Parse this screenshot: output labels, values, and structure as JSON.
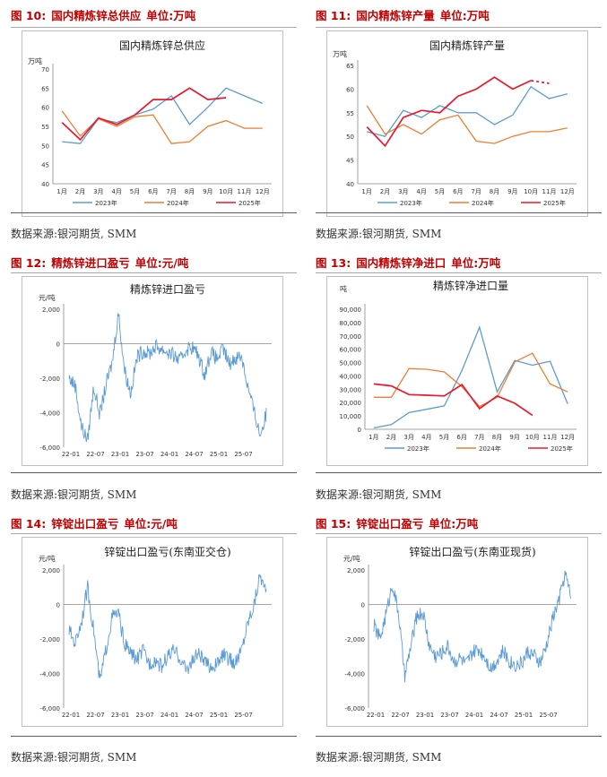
{
  "months": [
    "1月",
    "2月",
    "3月",
    "4月",
    "5月",
    "6月",
    "7月",
    "8月",
    "9月",
    "10月",
    "11月",
    "12月"
  ],
  "panels": [
    {
      "fig_label": "图 10:",
      "fig_title": "国内精炼锌总供应",
      "unit": "单位:万吨",
      "source": "数据来源:银河期货, SMM"
    },
    {
      "fig_label": "图 11:",
      "fig_title": "国内精炼锌产量",
      "unit": "单位:万吨",
      "source": "数据来源:银河期货, SMM"
    },
    {
      "fig_label": "图 12:",
      "fig_title": "精炼锌进口盈亏",
      "unit": "单位:元/吨",
      "source": "数据来源:银河期货, SMM"
    },
    {
      "fig_label": "图 13:",
      "fig_title": "国内精炼锌净进口",
      "unit": "单位:万吨",
      "source": "数据来源:银河期货, SMM"
    },
    {
      "fig_label": "图 14:",
      "fig_title": "锌锭出口盈亏",
      "unit": "单位:元/吨",
      "source": "数据来源:银河期货, SMM"
    },
    {
      "fig_label": "图 15:",
      "fig_title": "锌锭出口盈亏",
      "unit": "单位:万吨",
      "source": "数据来源:银河期货, SMM"
    }
  ],
  "chart_data": [
    {
      "type": "line",
      "title": "国内精炼锌总供应",
      "ylabel": "万吨",
      "ylim": [
        40,
        70
      ],
      "yticks": [
        "40",
        "45",
        "50",
        "55",
        "60",
        "65",
        "70"
      ],
      "categories": [
        "1月",
        "2月",
        "3月",
        "4月",
        "5月",
        "6月",
        "7月",
        "8月",
        "9月",
        "10月",
        "11月",
        "12月"
      ],
      "series": [
        {
          "name": "2023年",
          "color": "#5b9bd5",
          "values": [
            51,
            50.5,
            57,
            56,
            58,
            59.5,
            63,
            55.5,
            60,
            65,
            63,
            61
          ]
        },
        {
          "name": "2024年",
          "color": "#ed7d31",
          "values": [
            59,
            52.5,
            57,
            55,
            57.5,
            58,
            50.5,
            51,
            55,
            56.5,
            54.5,
            54.5
          ]
        },
        {
          "name": "2025年",
          "color": "#e8192c",
          "values": [
            56,
            51.5,
            57.2,
            55.5,
            58,
            62,
            62,
            65,
            62,
            62.5,
            null,
            null
          ]
        }
      ]
    },
    {
      "type": "line",
      "title": "国内精炼锌产量",
      "ylabel": "万吨",
      "ylim": [
        40,
        65
      ],
      "yticks": [
        "40",
        "45",
        "50",
        "55",
        "60",
        "65"
      ],
      "categories": [
        "1月",
        "2月",
        "3月",
        "4月",
        "5月",
        "6月",
        "7月",
        "8月",
        "9月",
        "10月",
        "11月",
        "12月"
      ],
      "series": [
        {
          "name": "2023年",
          "color": "#5b9bd5",
          "values": [
            51,
            50,
            55.5,
            54,
            56.5,
            55,
            55,
            52.5,
            54.5,
            60.5,
            58,
            59
          ]
        },
        {
          "name": "2024年",
          "color": "#ed7d31",
          "values": [
            56.5,
            50.5,
            52.5,
            50.5,
            53.5,
            54.5,
            49,
            48.5,
            50,
            51,
            51,
            51.8
          ]
        },
        {
          "name": "2025年",
          "color": "#e8192c",
          "values": [
            52,
            48,
            54,
            55.5,
            55,
            58.5,
            60,
            62.5,
            60,
            61.8,
            null,
            null
          ],
          "dashed_tail": [
            61.8,
            61.5,
            61.2
          ]
        }
      ]
    },
    {
      "type": "line",
      "title": "精炼锌进口盈亏",
      "ylabel": "元/吨",
      "ylim": [
        -6000,
        2000
      ],
      "yticks": [
        "-6,000",
        "-4,000",
        "-2,000",
        "0",
        "2,000"
      ],
      "x_ticks": [
        "22-01",
        "22-07",
        "23-01",
        "23-07",
        "24-01",
        "24-07",
        "25-01",
        "25-07"
      ],
      "series": [
        {
          "name": "进口盈亏",
          "color": "#5b9bd5",
          "values": [
            -2000,
            -2400,
            -4800,
            -5600,
            -2500,
            -4100,
            -2400,
            -1100,
            1800,
            -1500,
            -2900,
            -800,
            -400,
            -600,
            -150,
            -300,
            -500,
            -700,
            -1000,
            -300,
            -200,
            -700,
            -1800,
            -500,
            -900,
            -300,
            -1200,
            -800,
            -700,
            -2500,
            -3900,
            -5300,
            -4100
          ]
        }
      ]
    },
    {
      "type": "line",
      "title": "精炼锌净进口量",
      "ylabel": "吨",
      "ylim": [
        0,
        90000
      ],
      "yticks": [
        "0",
        "10,000",
        "20,000",
        "30,000",
        "40,000",
        "50,000",
        "60,000",
        "70,000",
        "80,000",
        "90,000"
      ],
      "categories": [
        "1月",
        "2月",
        "3月",
        "4月",
        "5月",
        "6月",
        "7月",
        "8月",
        "9月",
        "10月",
        "11月",
        "12月"
      ],
      "series": [
        {
          "name": "2023年",
          "color": "#5b9bd5",
          "values": [
            1000,
            3500,
            12500,
            15000,
            17500,
            44000,
            76500,
            28000,
            51500,
            48000,
            51000,
            19000
          ]
        },
        {
          "name": "2024年",
          "color": "#ed7d31",
          "values": [
            24000,
            24000,
            45500,
            45000,
            43000,
            32000,
            17000,
            24000,
            50500,
            57000,
            34000,
            28000
          ]
        },
        {
          "name": "2025年",
          "color": "#e8192c",
          "values": [
            34000,
            32500,
            26000,
            25500,
            25000,
            33500,
            15500,
            25000,
            19500,
            10500,
            null,
            null
          ]
        }
      ]
    },
    {
      "type": "line",
      "title": "锌锭出口盈亏(东南亚交仓)",
      "ylabel": "元/吨",
      "ylim": [
        -6000,
        2000
      ],
      "yticks": [
        "-6,000",
        "-4,000",
        "-2,000",
        "0",
        "2,000"
      ],
      "x_ticks": [
        "22-01",
        "22-07",
        "23-01",
        "23-07",
        "24-01",
        "24-07",
        "25-01",
        "25-07"
      ],
      "series": [
        {
          "name": "出口盈亏(东南亚交仓)",
          "color": "#5b9bd5",
          "values": [
            -1500,
            -2200,
            -1000,
            1000,
            -1500,
            -4500,
            -2600,
            -700,
            -500,
            -2300,
            -2800,
            -3200,
            -2700,
            -3400,
            -3200,
            -3600,
            -3000,
            -2700,
            -3100,
            -3800,
            -3300,
            -2800,
            -3400,
            -3600,
            -3500,
            -2900,
            -3200,
            -3400,
            -2600,
            -1000,
            0,
            1800,
            500
          ]
        }
      ]
    },
    {
      "type": "line",
      "title": "锌锭出口盈亏(东南亚现货)",
      "ylabel": "元/吨",
      "ylim": [
        -6000,
        2000
      ],
      "yticks": [
        "-6,000",
        "-4,000",
        "-2,000",
        "0",
        "2,000"
      ],
      "x_ticks": [
        "22-01",
        "22-07",
        "23-01",
        "23-07",
        "24-01",
        "24-07",
        "25-01",
        "25-07"
      ],
      "series": [
        {
          "name": "出口盈亏(东南亚现货)",
          "color": "#5b9bd5",
          "values": [
            -1200,
            -2000,
            -500,
            1200,
            -500,
            -4200,
            -2400,
            -600,
            -500,
            -2400,
            -3000,
            -2800,
            -2400,
            -3300,
            -3100,
            -3500,
            -2800,
            -2600,
            -3000,
            -3700,
            -3200,
            -2700,
            -3300,
            -3500,
            -3400,
            -2700,
            -3000,
            -3400,
            -2400,
            -800,
            200,
            1800,
            400
          ]
        }
      ]
    }
  ]
}
